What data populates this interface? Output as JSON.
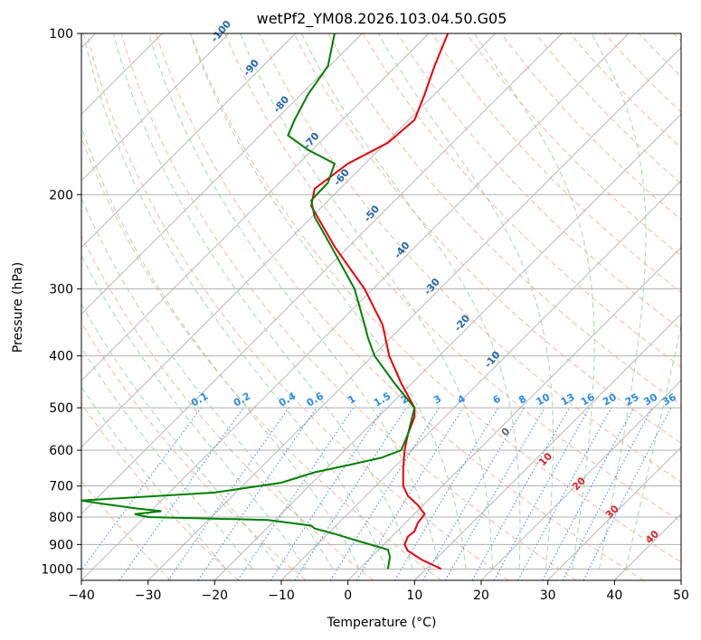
{
  "chart_data": {
    "type": "skew-t",
    "title": "wetPf2_YM08.2026.103.04.50.G05",
    "xlabel": "Temperature (°C)",
    "ylabel": "Pressure (hPa)",
    "xlim": [
      -40,
      50
    ],
    "ylim_hPa": [
      1050,
      100
    ],
    "x_ticks": [
      "−40",
      "−30",
      "−20",
      "−10",
      "0",
      "10",
      "20",
      "30",
      "40",
      "50"
    ],
    "x_tick_values": [
      -40,
      -30,
      -20,
      -10,
      0,
      10,
      20,
      30,
      40,
      50
    ],
    "y_ticks": [
      "100",
      "200",
      "300",
      "400",
      "500",
      "600",
      "700",
      "800",
      "900",
      "1000"
    ],
    "y_tick_values": [
      100,
      200,
      300,
      400,
      500,
      600,
      700,
      800,
      900,
      1000
    ],
    "temperature": {
      "color": "#e8000b",
      "points": [
        [
          1000,
          14
        ],
        [
          960,
          11
        ],
        [
          925,
          9
        ],
        [
          900,
          8.5
        ],
        [
          870,
          9
        ],
        [
          850,
          10
        ],
        [
          820,
          10.5
        ],
        [
          790,
          11.5
        ],
        [
          760,
          10.5
        ],
        [
          730,
          9
        ],
        [
          700,
          8.3
        ],
        [
          650,
          8.3
        ],
        [
          600,
          8.5
        ],
        [
          560,
          9
        ],
        [
          520,
          10
        ],
        [
          500,
          10
        ],
        [
          450,
          8
        ],
        [
          400,
          6.2
        ],
        [
          350,
          5.2
        ],
        [
          300,
          2.5
        ],
        [
          250,
          -2
        ],
        [
          210,
          -5.5
        ],
        [
          195,
          -5
        ],
        [
          175,
          0
        ],
        [
          160,
          6
        ],
        [
          145,
          10
        ],
        [
          130,
          11.5
        ],
        [
          115,
          13
        ],
        [
          100,
          15
        ]
      ]
    },
    "dewpoint": {
      "color": "#008000",
      "points": [
        [
          1000,
          6
        ],
        [
          950,
          6.3
        ],
        [
          920,
          6
        ],
        [
          890,
          2
        ],
        [
          860,
          -2
        ],
        [
          840,
          -5
        ],
        [
          830,
          -5.5
        ],
        [
          810,
          -12
        ],
        [
          800,
          -30
        ],
        [
          790,
          -32
        ],
        [
          780,
          -28
        ],
        [
          770,
          -32
        ],
        [
          755,
          -37
        ],
        [
          745,
          -40
        ],
        [
          720,
          -20
        ],
        [
          690,
          -10
        ],
        [
          660,
          -5
        ],
        [
          640,
          0
        ],
        [
          620,
          5
        ],
        [
          600,
          8
        ],
        [
          560,
          9
        ],
        [
          500,
          10
        ],
        [
          450,
          7
        ],
        [
          400,
          4
        ],
        [
          370,
          3
        ],
        [
          350,
          2.5
        ],
        [
          300,
          1
        ],
        [
          250,
          -2.5
        ],
        [
          220,
          -5
        ],
        [
          205,
          -5.5
        ],
        [
          190,
          -3
        ],
        [
          175,
          -2
        ],
        [
          165,
          -6
        ],
        [
          155,
          -9
        ],
        [
          145,
          -8
        ],
        [
          130,
          -6
        ],
        [
          115,
          -3
        ],
        [
          100,
          -2
        ]
      ]
    },
    "dry_adiabat_labels": [
      "-100",
      "-90",
      "-80",
      "-70",
      "-60",
      "-50",
      "-40",
      "-30",
      "-20",
      "-10"
    ],
    "moist_adiabat_labels": [
      "0",
      "10",
      "20",
      "30",
      "40"
    ],
    "mixing_ratio_labels": [
      "0.1",
      "0.2",
      "0.4",
      "0.6",
      "1",
      "1.5",
      "2",
      "3",
      "4",
      "6",
      "8",
      "10",
      "13",
      "16",
      "20",
      "25",
      "30",
      "36"
    ]
  },
  "colors": {
    "dry_adiabat": "#f4a582",
    "moist_adiabat": "#9fd29f",
    "mixing_ratio": "#2b8ce6",
    "isotherm": "#888888",
    "dry_label": "#2166ac",
    "moist_label": "#d6262b",
    "mix_label": "#2b8ce6"
  }
}
